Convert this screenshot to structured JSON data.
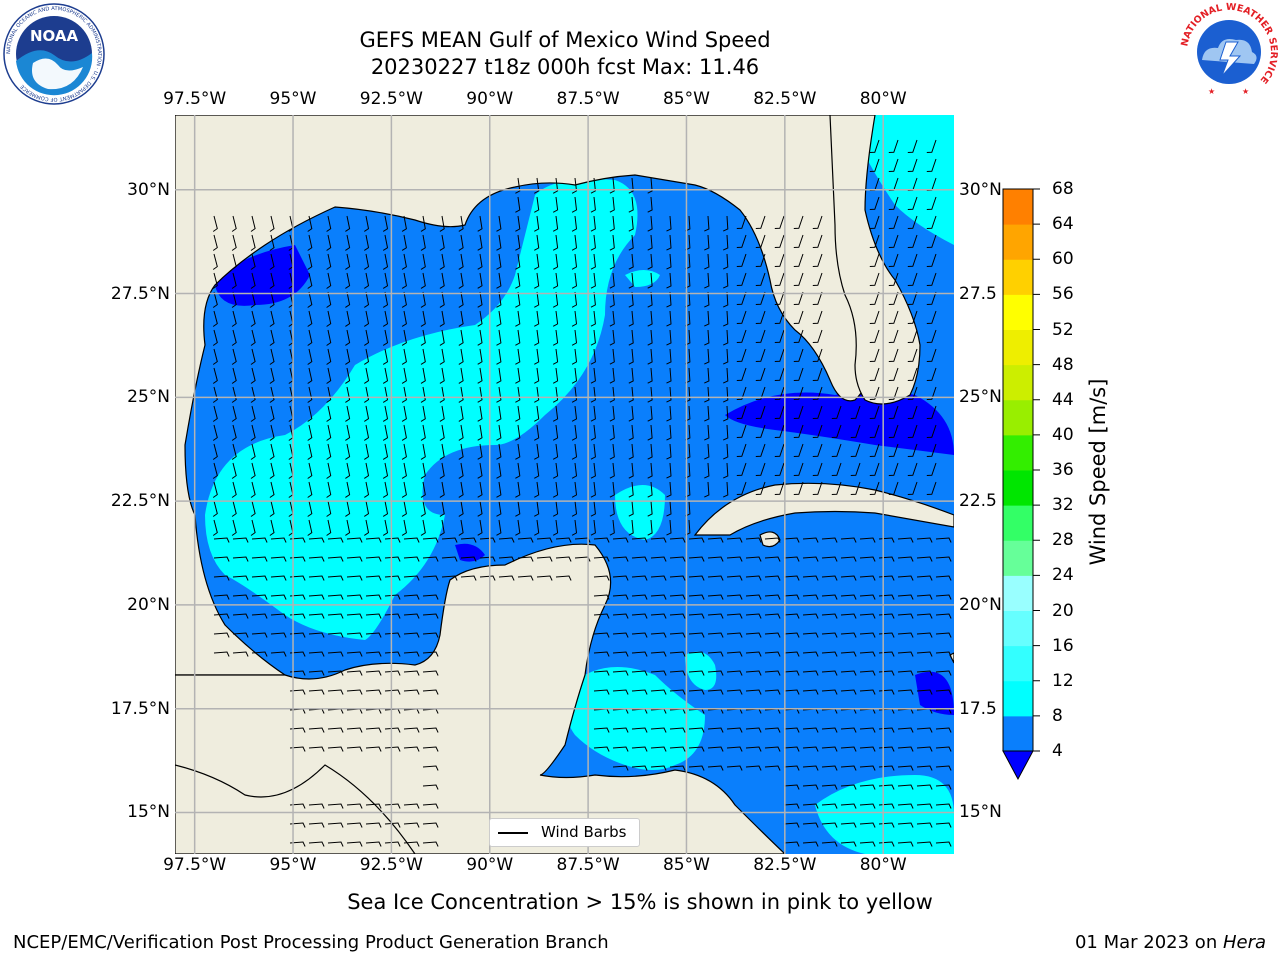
{
  "header": {
    "title_line1": "GEFS MEAN Gulf of Mexico Wind Speed",
    "title_line2": "20230227 t18z 000h fcst   Max: 11.46"
  },
  "logos": {
    "noaa_text": "NOAA",
    "noaa_ring_text": "NATIONAL OCEANIC AND ATMOSPHERIC ADMINISTRATION · U.S. DEPARTMENT OF COMMERCE",
    "nws_ring_text": "NATIONAL WEATHER SERVICE"
  },
  "map": {
    "lon_ticks": [
      "97.5°W",
      "95°W",
      "92.5°W",
      "90°W",
      "87.5°W",
      "85°W",
      "82.5°W",
      "80°W"
    ],
    "lon_values": [
      -97.5,
      -95,
      -92.5,
      -90,
      -87.5,
      -85,
      -82.5,
      -80
    ],
    "lat_ticks_left": [
      "30°N",
      "27.5°N",
      "25°N",
      "22.5°N",
      "20°N",
      "17.5°N",
      "15°N"
    ],
    "lat_ticks_right": [
      "30°N",
      "27.5",
      "25°N",
      "22.5",
      "20°N",
      "17.5",
      "15°N"
    ],
    "lat_values": [
      30,
      27.5,
      25,
      22.5,
      20,
      17.5,
      15
    ],
    "extent": {
      "lon_min": -98,
      "lon_max": -78.2,
      "lat_min": 14,
      "lat_max": 31.8
    },
    "legend_label": "Wind Barbs",
    "colors": {
      "land": "#efedde",
      "grid": "#b3b3b3",
      "coast": "#000000"
    }
  },
  "colorbar": {
    "label": "Wind Speed [m/s]",
    "ticks": [
      "4",
      "8",
      "12",
      "16",
      "20",
      "24",
      "28",
      "32",
      "36",
      "40",
      "44",
      "48",
      "52",
      "56",
      "60",
      "64",
      "68"
    ],
    "colors": [
      "#0a7ffc",
      "#00ffff",
      "#33ffff",
      "#66ffff",
      "#99ffff",
      "#66ff99",
      "#33ff66",
      "#00e600",
      "#33ee00",
      "#99ee00",
      "#ccee00",
      "#eeee00",
      "#ffff00",
      "#ffd000",
      "#ffa500",
      "#ff8000",
      "#ff5000",
      "#ff2200",
      "#ff0000"
    ],
    "extend_color": "#0000ff"
  },
  "note": "Sea Ice Concentration > 15% is shown in pink to yellow",
  "footer": {
    "left": "NCEP/EMC/Verification Post Processing Product Generation Branch",
    "date": "01 Mar 2023 on ",
    "host": "Hera"
  }
}
